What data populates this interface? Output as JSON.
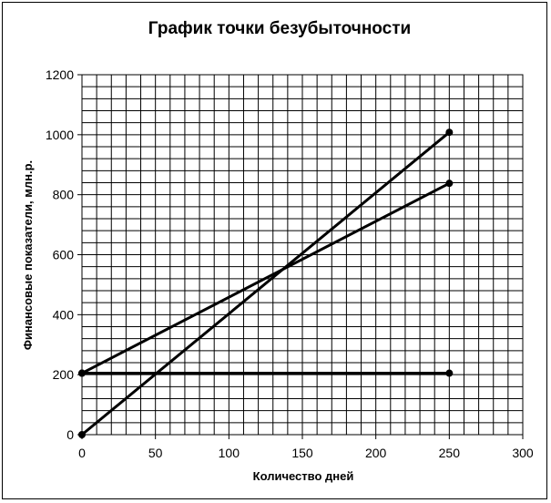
{
  "chart_data": {
    "type": "line",
    "title": "График точки безубыточности",
    "xlabel": "Количество дней",
    "ylabel": "Финансовые  показатели,  млн.р.",
    "xlim": [
      0,
      300
    ],
    "ylim": [
      0,
      1200
    ],
    "xticks": [
      "0",
      "50",
      "100",
      "150",
      "200",
      "250",
      "300"
    ],
    "yticks": [
      "0",
      "200",
      "400",
      "600",
      "800",
      "1000",
      "1200"
    ],
    "grid": true,
    "legend": "none",
    "line_color": "#000000",
    "series": [
      {
        "x": [
          0,
          250
        ],
        "y": [
          205,
          205
        ]
      },
      {
        "x": [
          0,
          250
        ],
        "y": [
          0,
          1008
        ]
      },
      {
        "x": [
          0,
          250
        ],
        "y": [
          205,
          838
        ]
      }
    ]
  }
}
